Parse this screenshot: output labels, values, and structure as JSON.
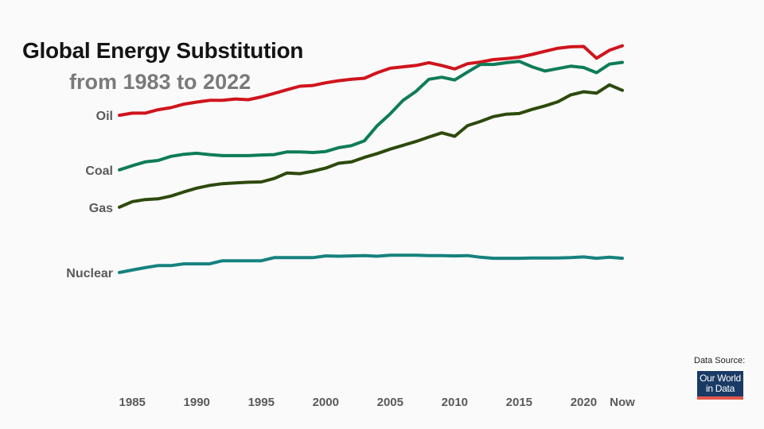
{
  "title": "Global Energy Substitution",
  "subtitle": "from 1983 to 2022",
  "source": {
    "label": "Data Source:",
    "logo_line1": "Our World",
    "logo_line2": "in Data",
    "logo_color": "#1a3a66",
    "logo_accent": "#e0584a"
  },
  "chart_data": {
    "type": "line",
    "title": "Global Energy Substitution",
    "subtitle": "from 1983 to 2022",
    "xlabel": "",
    "ylabel": "",
    "xlim": [
      1983,
      2022
    ],
    "ylim": [
      0,
      100
    ],
    "x_ticks": [
      {
        "x": 1984,
        "label": "1985"
      },
      {
        "x": 1989,
        "label": "1990"
      },
      {
        "x": 1994,
        "label": "1995"
      },
      {
        "x": 1999,
        "label": "2000"
      },
      {
        "x": 2004,
        "label": "2005"
      },
      {
        "x": 2009,
        "label": "2010"
      },
      {
        "x": 2014,
        "label": "2015"
      },
      {
        "x": 2019,
        "label": "2020"
      },
      {
        "x": 2022,
        "label": "Now"
      }
    ],
    "grid": false,
    "x": [
      1983,
      1984,
      1985,
      1986,
      1987,
      1988,
      1989,
      1990,
      1991,
      1992,
      1993,
      1994,
      1995,
      1996,
      1997,
      1998,
      1999,
      2000,
      2001,
      2002,
      2003,
      2004,
      2005,
      2006,
      2007,
      2008,
      2009,
      2010,
      2011,
      2012,
      2013,
      2014,
      2015,
      2016,
      2017,
      2018,
      2019,
      2020,
      2021,
      2022
    ],
    "series": [
      {
        "name": "Oil",
        "color": "#d0141c",
        "values": [
          77.0,
          77.6,
          77.6,
          78.6,
          79.2,
          80.2,
          80.8,
          81.3,
          81.3,
          81.7,
          81.5,
          82.3,
          83.3,
          84.4,
          85.4,
          85.6,
          86.4,
          87.0,
          87.4,
          87.7,
          89.3,
          90.6,
          91.0,
          91.4,
          92.2,
          91.4,
          90.4,
          91.9,
          92.4,
          93.1,
          93.4,
          93.8,
          94.6,
          95.5,
          96.4,
          96.8,
          96.9,
          93.5,
          95.8,
          97.1
        ]
      },
      {
        "name": "Coal",
        "color": "#0e7c58",
        "values": [
          61.2,
          62.4,
          63.5,
          63.9,
          65.1,
          65.7,
          66.0,
          65.6,
          65.3,
          65.3,
          65.3,
          65.5,
          65.6,
          66.4,
          66.4,
          66.2,
          66.5,
          67.6,
          68.2,
          69.6,
          74.0,
          77.4,
          81.3,
          83.9,
          87.4,
          88.0,
          87.2,
          89.5,
          91.7,
          91.7,
          92.2,
          92.6,
          91.0,
          89.8,
          90.5,
          91.2,
          90.8,
          89.3,
          91.8,
          92.3
        ]
      },
      {
        "name": "Gas",
        "color": "#2d4a0d",
        "values": [
          50.4,
          52.0,
          52.6,
          52.8,
          53.6,
          54.8,
          55.9,
          56.7,
          57.2,
          57.4,
          57.6,
          57.7,
          58.7,
          60.3,
          60.1,
          60.8,
          61.7,
          63.1,
          63.5,
          64.8,
          65.9,
          67.2,
          68.3,
          69.4,
          70.7,
          71.9,
          70.9,
          74.0,
          75.2,
          76.6,
          77.3,
          77.5,
          78.7,
          79.7,
          80.9,
          82.9,
          83.8,
          83.4,
          85.8,
          84.2
        ]
      },
      {
        "name": "Nuclear",
        "color": "#16827e",
        "values": [
          31.5,
          32.2,
          32.9,
          33.5,
          33.5,
          34.0,
          34.0,
          34.0,
          34.9,
          34.9,
          34.9,
          34.9,
          35.8,
          35.8,
          35.8,
          35.8,
          36.3,
          36.2,
          36.3,
          36.4,
          36.2,
          36.5,
          36.5,
          36.5,
          36.4,
          36.4,
          36.3,
          36.4,
          35.9,
          35.6,
          35.6,
          35.6,
          35.7,
          35.7,
          35.7,
          35.8,
          36.0,
          35.6,
          35.9,
          35.6
        ]
      }
    ]
  }
}
